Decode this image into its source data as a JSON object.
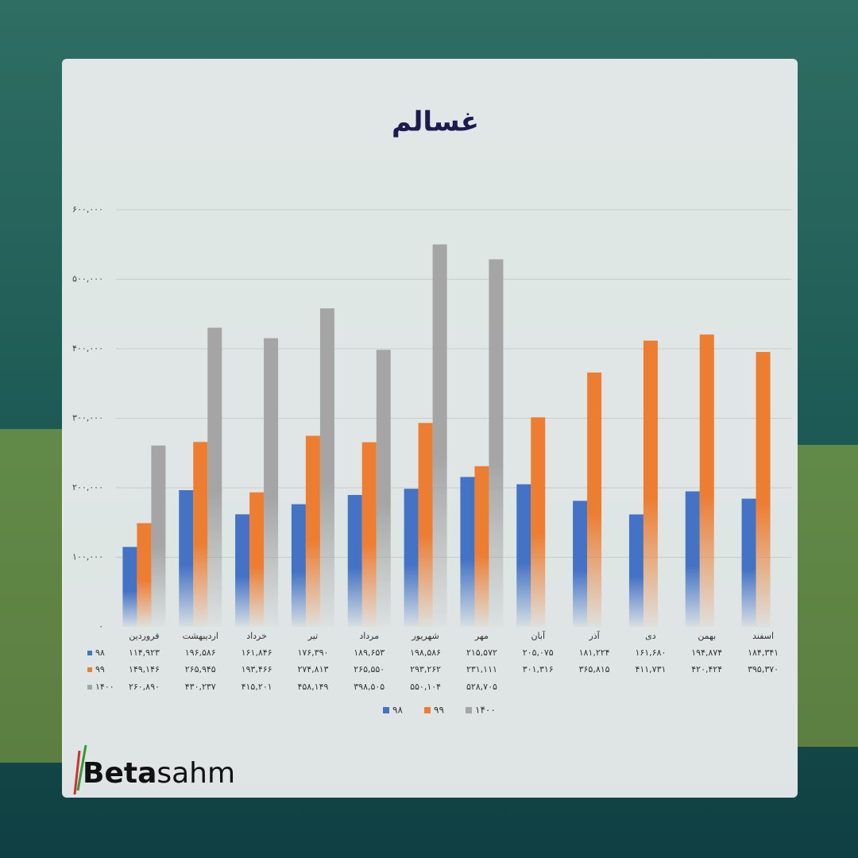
{
  "chart_data": {
    "type": "bar",
    "title": "غسالم",
    "categories": [
      "فروردین",
      "اردیبهشت",
      "خرداد",
      "تیر",
      "مرداد",
      "شهریور",
      "مهر",
      "آبان",
      "آذر",
      "دی",
      "بهمن",
      "اسفند"
    ],
    "series": [
      {
        "name": "۹۸",
        "color": "#4472c4",
        "values": [
          114923,
          196586,
          161846,
          176390,
          189653,
          198586,
          215572,
          205075,
          181224,
          161680,
          194874,
          184341
        ],
        "value_labels": [
          "۱۱۴,۹۲۳",
          "۱۹۶,۵۸۶",
          "۱۶۱,۸۴۶",
          "۱۷۶,۳۹۰",
          "۱۸۹,۶۵۳",
          "۱۹۸,۵۸۶",
          "۲۱۵,۵۷۲",
          "۲۰۵,۰۷۵",
          "۱۸۱,۲۲۴",
          "۱۶۱,۶۸۰",
          "۱۹۴,۸۷۴",
          "۱۸۴,۳۴۱"
        ]
      },
      {
        "name": "۹۹",
        "color": "#ed7d31",
        "values": [
          149146,
          265945,
          193466,
          274813,
          265550,
          293262,
          231111,
          301316,
          365815,
          411731,
          420424,
          395370
        ],
        "value_labels": [
          "۱۴۹,۱۴۶",
          "۲۶۵,۹۴۵",
          "۱۹۳,۴۶۶",
          "۲۷۴,۸۱۳",
          "۲۶۵,۵۵۰",
          "۲۹۳,۲۶۲",
          "۲۳۱,۱۱۱",
          "۳۰۱,۳۱۶",
          "۳۶۵,۸۱۵",
          "۴۱۱,۷۳۱",
          "۴۲۰,۴۲۴",
          "۳۹۵,۳۷۰"
        ]
      },
      {
        "name": "۱۴۰۰",
        "color": "#a5a5a5",
        "values": [
          260890,
          430237,
          415201,
          458149,
          398505,
          550104,
          528705,
          null,
          null,
          null,
          null,
          null
        ],
        "value_labels": [
          "۲۶۰,۸۹۰",
          "۴۳۰,۲۳۷",
          "۴۱۵,۲۰۱",
          "۴۵۸,۱۴۹",
          "۳۹۸,۵۰۵",
          "۵۵۰,۱۰۴",
          "۵۲۸,۷۰۵",
          null,
          null,
          null,
          null,
          null
        ]
      }
    ],
    "ylim": [
      0,
      600000
    ],
    "yticks": [
      {
        "value": 0,
        "label": "۰"
      },
      {
        "value": 100000,
        "label": "۱۰۰,۰۰۰"
      },
      {
        "value": 200000,
        "label": "۲۰۰,۰۰۰"
      },
      {
        "value": 300000,
        "label": "۳۰۰,۰۰۰"
      },
      {
        "value": 400000,
        "label": "۴۰۰,۰۰۰"
      },
      {
        "value": 500000,
        "label": "۵۰۰,۰۰۰"
      },
      {
        "value": 600000,
        "label": "۶۰۰,۰۰۰"
      }
    ],
    "grid": true
  },
  "logo": {
    "bold": "Beta",
    "rest": "sahm"
  }
}
